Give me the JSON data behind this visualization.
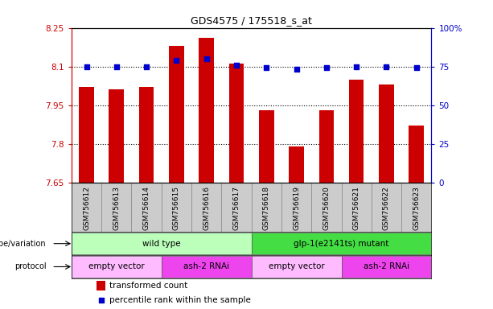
{
  "title": "GDS4575 / 175518_s_at",
  "samples": [
    "GSM756612",
    "GSM756613",
    "GSM756614",
    "GSM756615",
    "GSM756616",
    "GSM756617",
    "GSM756618",
    "GSM756619",
    "GSM756620",
    "GSM756621",
    "GSM756622",
    "GSM756623"
  ],
  "transformed_count": [
    8.02,
    8.01,
    8.02,
    8.18,
    8.21,
    8.11,
    7.93,
    7.79,
    7.93,
    8.05,
    8.03,
    7.87
  ],
  "percentile_rank": [
    75,
    75,
    75,
    79,
    80,
    76,
    74,
    73,
    74,
    75,
    75,
    74
  ],
  "ylim_left": [
    7.65,
    8.25
  ],
  "ylim_right": [
    0,
    100
  ],
  "yticks_left": [
    7.65,
    7.8,
    7.95,
    8.1,
    8.25
  ],
  "yticks_right": [
    0,
    25,
    50,
    75,
    100
  ],
  "ytick_labels_left": [
    "7.65",
    "7.8",
    "7.95",
    "8.1",
    "8.25"
  ],
  "ytick_labels_right": [
    "0",
    "25",
    "50",
    "75",
    "100%"
  ],
  "hlines": [
    7.8,
    7.95,
    8.1
  ],
  "bar_color": "#cc0000",
  "dot_color": "#0000cc",
  "bar_width": 0.5,
  "genotype_groups": [
    {
      "label": "wild type",
      "start": 0,
      "end": 6,
      "color": "#bbffbb"
    },
    {
      "label": "glp-1(e2141ts) mutant",
      "start": 6,
      "end": 12,
      "color": "#44dd44"
    }
  ],
  "protocol_groups": [
    {
      "label": "empty vector",
      "start": 0,
      "end": 3,
      "color": "#ffbbff"
    },
    {
      "label": "ash-2 RNAi",
      "start": 3,
      "end": 6,
      "color": "#ee44ee"
    },
    {
      "label": "empty vector",
      "start": 6,
      "end": 9,
      "color": "#ffbbff"
    },
    {
      "label": "ash-2 RNAi",
      "start": 9,
      "end": 12,
      "color": "#ee44ee"
    }
  ],
  "legend_bar_label": "transformed count",
  "legend_dot_label": "percentile rank within the sample",
  "genotype_label": "genotype/variation",
  "protocol_label": "protocol",
  "left_axis_color": "#cc0000",
  "right_axis_color": "#0000cc",
  "tick_color_left": "#cc0000",
  "tick_color_right": "#0000cc",
  "background_color": "#ffffff",
  "sample_box_color": "#cccccc",
  "n_samples": 12
}
